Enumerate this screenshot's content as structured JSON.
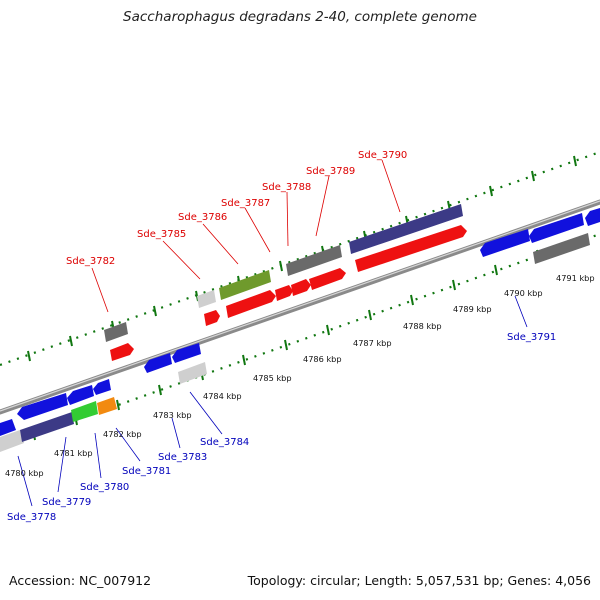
{
  "title": "Saccharophagus degradans 2-40, complete genome",
  "footer": {
    "accession": "Accession: NC_007912",
    "info": "Topology: circular; Length: 5,057,531 bp; Genes: 4,056"
  },
  "colors": {
    "red": "#ee1111",
    "blue": "#1111dd",
    "navy": "#3c3a86",
    "gray": "#6a6a6a",
    "lightgray": "#cfcfcf",
    "olive": "#6f9a2c",
    "green": "#33cc33",
    "orange": "#f28a10",
    "forward_label": "#dd0000",
    "reverse_label": "#0000bb",
    "tick": "#117711"
  },
  "scale_labels": [
    "4780 kbp",
    "4781 kbp",
    "4782 kbp",
    "4783 kbp",
    "4784 kbp",
    "4785 kbp",
    "4786 kbp",
    "4787 kbp",
    "4788 kbp",
    "4789 kbp",
    "4790 kbp",
    "4791 kbp"
  ],
  "genes_forward": [
    "Sde_3782",
    "Sde_3785",
    "Sde_3786",
    "Sde_3787",
    "Sde_3788",
    "Sde_3789",
    "Sde_3790"
  ],
  "genes_reverse": [
    "Sde_3778",
    "Sde_3779",
    "Sde_3780",
    "Sde_3781",
    "Sde_3783",
    "Sde_3784",
    "Sde_3791"
  ]
}
